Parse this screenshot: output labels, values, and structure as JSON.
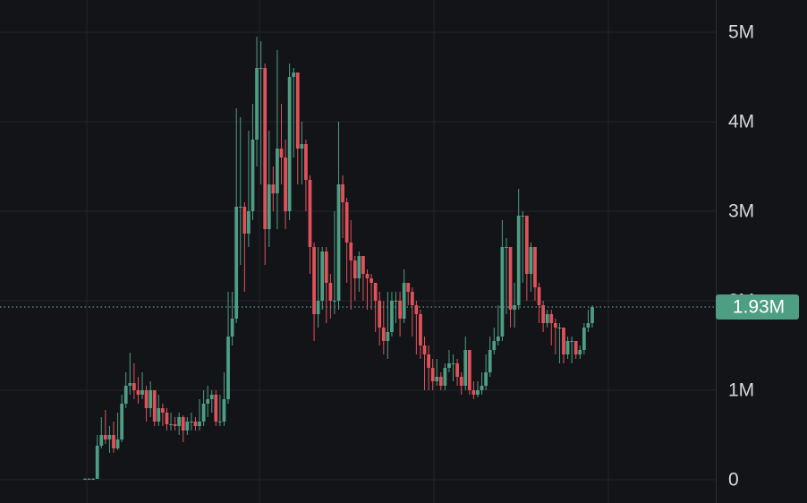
{
  "chart_data": {
    "type": "candlestick",
    "open": [
      0,
      10000,
      10000,
      10000,
      380000,
      500000,
      450000,
      500000,
      350000,
      450000,
      850000,
      1050000,
      1080000,
      1000000,
      950000,
      1000000,
      800000,
      1000000,
      650000,
      800000,
      750000,
      620000,
      620000,
      600000,
      700000,
      550000,
      650000,
      650000,
      600000,
      650000,
      850000,
      900000,
      950000,
      650000,
      650000,
      900000,
      1600000,
      1800000,
      3050000,
      3050000,
      2750000,
      3000000,
      3800000,
      4600000,
      4600000,
      2800000,
      3300000,
      3200000,
      3700000,
      3600000,
      3000000,
      4500000,
      4550000,
      3700000,
      3750000,
      3350000,
      2600000,
      1850000,
      2000000,
      2550000,
      2200000,
      2000000,
      2000000,
      3300000,
      3100000,
      2650000,
      2450000,
      2250000,
      2500000,
      2300000,
      2250000,
      2200000,
      2000000,
      1700000,
      1550000,
      1650000,
      2000000,
      2000000,
      1800000,
      2200000,
      2100000,
      1950000,
      1850000,
      1500000,
      1400000,
      1250000,
      1100000,
      1150000,
      1050000,
      1250000,
      1300000,
      1300000,
      1150000,
      1050000,
      1450000,
      1000000,
      950000,
      1000000,
      1050000,
      1200000,
      1450000,
      1550000,
      1600000,
      2600000,
      2600000,
      1900000,
      1950000,
      2950000,
      2950000,
      2300000,
      2600000,
      2150000,
      1950000,
      1750000,
      1850000,
      1750000,
      1700000,
      1700000,
      1400000,
      1550000,
      1550000,
      1400000,
      1450000,
      1700000,
      1750000
    ],
    "high": [
      20000,
      20000,
      20000,
      500000,
      700000,
      780000,
      600000,
      650000,
      750000,
      950000,
      1200000,
      1420000,
      1300000,
      1150000,
      1200000,
      1050000,
      1100000,
      1000000,
      950000,
      850000,
      800000,
      750000,
      700000,
      750000,
      720000,
      700000,
      750000,
      700000,
      900000,
      1000000,
      1050000,
      1000000,
      1000000,
      950000,
      1200000,
      2100000,
      2100000,
      4150000,
      4050000,
      3100000,
      3900000,
      4200000,
      4950000,
      4900000,
      4650000,
      3900000,
      3500000,
      4800000,
      4200000,
      3800000,
      4650000,
      4600000,
      4550000,
      4000000,
      3800000,
      3400000,
      2650000,
      2600000,
      2600000,
      2600000,
      2300000,
      3000000,
      4000000,
      3400000,
      3150000,
      2900000,
      2500000,
      2550000,
      2500000,
      2350000,
      2300000,
      2200000,
      2100000,
      2000000,
      2100000,
      2100000,
      2100000,
      2100000,
      2350000,
      2200000,
      2150000,
      2000000,
      1900000,
      1600000,
      1500000,
      1350000,
      1350000,
      1200000,
      1300000,
      1450000,
      1400000,
      1350000,
      1200000,
      1600000,
      1450000,
      1100000,
      1100000,
      1200000,
      1400000,
      1600000,
      1700000,
      1950000,
      2900000,
      2700000,
      2600000,
      2200000,
      3250000,
      3000000,
      2950000,
      2650000,
      2600000,
      2200000,
      2000000,
      1900000,
      1900000,
      1800000,
      1750000,
      1700000,
      1600000,
      1600000,
      1550000,
      1500000,
      1750000,
      1900000,
      1950000
    ],
    "low": [
      0,
      0,
      0,
      10000,
      350000,
      400000,
      300000,
      300000,
      330000,
      420000,
      800000,
      950000,
      900000,
      850000,
      900000,
      650000,
      700000,
      600000,
      600000,
      600000,
      550000,
      550000,
      550000,
      500000,
      420000,
      500000,
      550000,
      550000,
      550000,
      600000,
      700000,
      750000,
      600000,
      600000,
      600000,
      850000,
      1500000,
      1750000,
      2400000,
      2100000,
      2600000,
      2900000,
      3500000,
      3300000,
      2400000,
      2600000,
      3000000,
      2800000,
      3300000,
      2800000,
      2900000,
      3600000,
      3300000,
      3300000,
      3000000,
      2300000,
      1550000,
      1700000,
      1900000,
      1750000,
      1800000,
      1850000,
      1900000,
      2700000,
      2200000,
      1900000,
      2000000,
      2100000,
      2000000,
      1900000,
      1900000,
      1650000,
      1500000,
      1400000,
      1350000,
      1600000,
      1750000,
      1600000,
      1750000,
      1950000,
      1600000,
      1400000,
      1350000,
      1000000,
      1000000,
      1000000,
      1050000,
      1000000,
      1000000,
      1200000,
      1100000,
      1050000,
      950000,
      1000000,
      950000,
      900000,
      920000,
      950000,
      1000000,
      1150000,
      1400000,
      1500000,
      1550000,
      1850000,
      1700000,
      1700000,
      1900000,
      2200000,
      2000000,
      2100000,
      2000000,
      1750000,
      1650000,
      1700000,
      1500000,
      1400000,
      1300000,
      1300000,
      1350000,
      1300000,
      1350000,
      1350000,
      1400000,
      1650000,
      1700000
    ],
    "close": [
      10000,
      10000,
      10000,
      380000,
      500000,
      450000,
      500000,
      350000,
      450000,
      850000,
      1050000,
      1080000,
      1000000,
      950000,
      1000000,
      800000,
      1000000,
      650000,
      800000,
      750000,
      620000,
      620000,
      600000,
      700000,
      550000,
      650000,
      650000,
      600000,
      650000,
      850000,
      900000,
      950000,
      650000,
      650000,
      900000,
      1600000,
      1800000,
      3050000,
      3050000,
      2750000,
      3000000,
      3800000,
      4600000,
      4600000,
      2800000,
      3300000,
      3200000,
      3700000,
      3600000,
      3000000,
      4500000,
      4550000,
      3700000,
      3750000,
      3350000,
      2600000,
      1850000,
      2000000,
      2550000,
      2200000,
      2000000,
      2000000,
      3300000,
      3100000,
      2650000,
      2450000,
      2250000,
      2500000,
      2300000,
      2250000,
      2200000,
      2000000,
      1700000,
      1550000,
      1650000,
      2000000,
      2000000,
      1800000,
      2200000,
      2100000,
      1950000,
      1850000,
      1500000,
      1400000,
      1250000,
      1100000,
      1150000,
      1050000,
      1250000,
      1300000,
      1300000,
      1150000,
      1050000,
      1450000,
      1000000,
      950000,
      1000000,
      1050000,
      1200000,
      1450000,
      1550000,
      1600000,
      2600000,
      2600000,
      1900000,
      1950000,
      2950000,
      2950000,
      2300000,
      2600000,
      2150000,
      1950000,
      1750000,
      1850000,
      1750000,
      1700000,
      1700000,
      1400000,
      1550000,
      1550000,
      1400000,
      1450000,
      1700000,
      1750000,
      1930000
    ],
    "last_price_label": "1.93M",
    "up_color": "#4d9e83",
    "down_color": "#e0525a",
    "ylim": [
      -260000,
      5360000
    ],
    "yticks": [
      0,
      {
        "value": 1000000,
        "label": "1M"
      },
      {
        "value": 2000000,
        "label": "2M"
      },
      {
        "value": 3000000,
        "label": "3M"
      },
      {
        "value": 4000000,
        "label": "4M"
      },
      {
        "value": 5000000,
        "label": "5M"
      }
    ],
    "grid": true
  }
}
